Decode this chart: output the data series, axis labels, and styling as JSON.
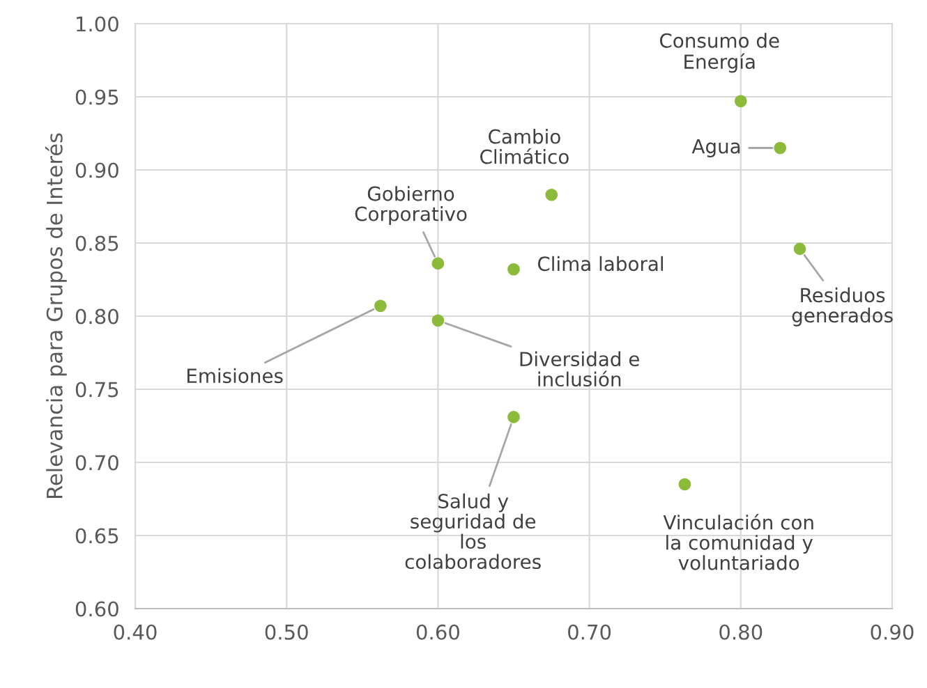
{
  "chart_data": {
    "type": "scatter",
    "ylabel": "Relevancia para Grupos de Interés",
    "x": [
      0.8,
      0.826,
      0.675,
      0.6,
      0.65,
      0.839,
      0.562,
      0.6,
      0.65,
      0.763
    ],
    "values": [
      0.947,
      0.915,
      0.883,
      0.836,
      0.832,
      0.846,
      0.807,
      0.797,
      0.731,
      0.685
    ],
    "color": "#8cba3a",
    "marker": "circle",
    "xlim": [
      0.4,
      0.9
    ],
    "xticks": [
      {
        "value": 0.4,
        "label": "0.40"
      },
      {
        "value": 0.5,
        "label": "0.50"
      },
      {
        "value": 0.6,
        "label": "0.60"
      },
      {
        "value": 0.7,
        "label": "0.70"
      },
      {
        "value": 0.8,
        "label": "0.80"
      },
      {
        "value": 0.9,
        "label": "0.90"
      }
    ],
    "ylim": [
      0.6,
      1.0
    ],
    "yticks": [
      {
        "value": 0.6,
        "label": "0.60"
      },
      {
        "value": 0.65,
        "label": "0.65"
      },
      {
        "value": 0.7,
        "label": "0.70"
      },
      {
        "value": 0.75,
        "label": "0.75"
      },
      {
        "value": 0.8,
        "label": "0.80"
      },
      {
        "value": 0.85,
        "label": "0.85"
      },
      {
        "value": 0.9,
        "label": "0.90"
      },
      {
        "value": 0.95,
        "label": "0.95"
      },
      {
        "value": 1.0,
        "label": "1.00"
      }
    ],
    "grid": true,
    "annotations": [
      {
        "text": "Consumo de\nEnergía",
        "x": 0.8,
        "y": 0.947
      },
      {
        "text": "Agua",
        "x": 0.826,
        "y": 0.915
      },
      {
        "text": "Cambio\nClimático",
        "x": 0.675,
        "y": 0.883
      },
      {
        "text": "Gobierno\nCorporativo",
        "x": 0.6,
        "y": 0.836
      },
      {
        "text": "Clima laboral",
        "x": 0.65,
        "y": 0.832
      },
      {
        "text": "Residuos\ngenerados",
        "x": 0.839,
        "y": 0.846
      },
      {
        "text": "Emisiones",
        "x": 0.562,
        "y": 0.807
      },
      {
        "text": "Diversidad e\ninclusión",
        "x": 0.6,
        "y": 0.797
      },
      {
        "text": "Salud y\nseguridad de\nlos\ncolaboradores",
        "x": 0.65,
        "y": 0.731
      },
      {
        "text": "Vinculación con\nla comunidad y\nvoluntariado",
        "x": 0.763,
        "y": 0.685
      }
    ]
  }
}
